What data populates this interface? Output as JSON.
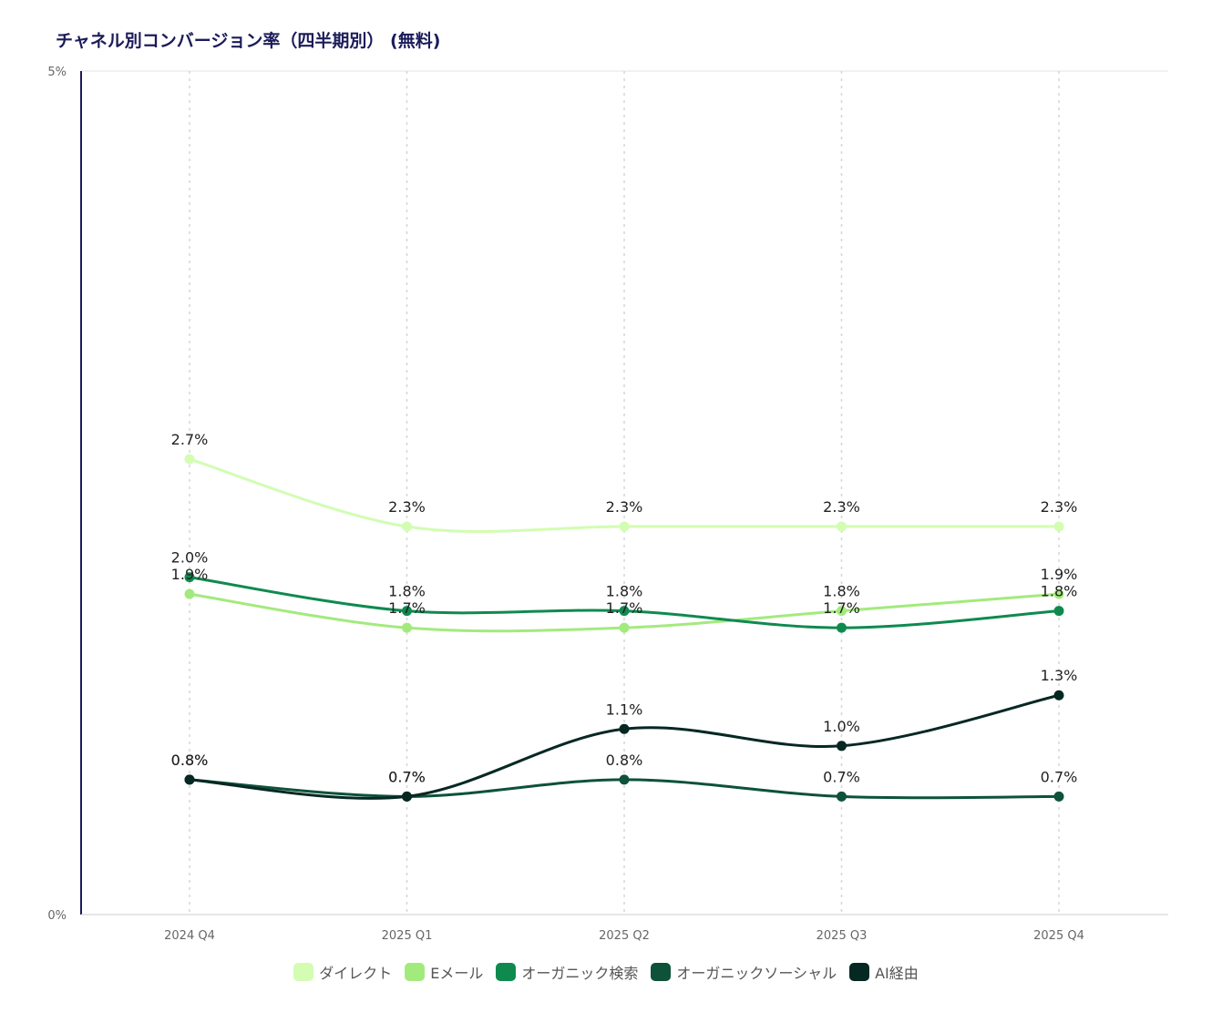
{
  "chart_data": {
    "type": "line",
    "title": "チャネル別コンバージョン率（四半期別） (無料)",
    "categories": [
      "2024 Q4",
      "2025 Q1",
      "2025 Q2",
      "2025 Q3",
      "2025 Q4"
    ],
    "ylim": [
      0,
      5
    ],
    "y_ticks": [
      "0%",
      "5%"
    ],
    "xlabel": "",
    "ylabel": "",
    "grid": "vertical dotted",
    "legend_position": "bottom",
    "series": [
      {
        "name": "ダイレクト",
        "color": "#d2fdb2",
        "values": [
          2.7,
          2.3,
          2.3,
          2.3,
          2.3
        ],
        "labels": [
          "2.7%",
          "2.3%",
          "2.3%",
          "2.3%",
          "2.3%"
        ]
      },
      {
        "name": "Eメール",
        "color": "#a3ea7d",
        "values": [
          1.9,
          1.7,
          1.7,
          1.8,
          1.9
        ],
        "labels": [
          "1.9%",
          "1.7%",
          "1.7%",
          "1.8%",
          "1.9%"
        ]
      },
      {
        "name": "オーガニック検索",
        "color": "#0f8a4f",
        "values": [
          2.0,
          1.8,
          1.8,
          1.7,
          1.8
        ],
        "labels": [
          "2.0%",
          "1.8%",
          "1.8%",
          "1.7%",
          "1.8%"
        ]
      },
      {
        "name": "オーガニックソーシャル",
        "color": "#0d5239",
        "values": [
          0.8,
          0.7,
          0.8,
          0.7,
          0.7
        ],
        "labels": [
          "0.8%",
          "0.7%",
          "0.8%",
          "0.7%",
          "0.7%"
        ]
      },
      {
        "name": "AI経由",
        "color": "#062823",
        "values": [
          0.8,
          0.7,
          1.1,
          1.0,
          1.3
        ],
        "labels": [
          "0.8%",
          "0.7%",
          "1.1%",
          "1.0%",
          "1.3%"
        ]
      }
    ]
  }
}
